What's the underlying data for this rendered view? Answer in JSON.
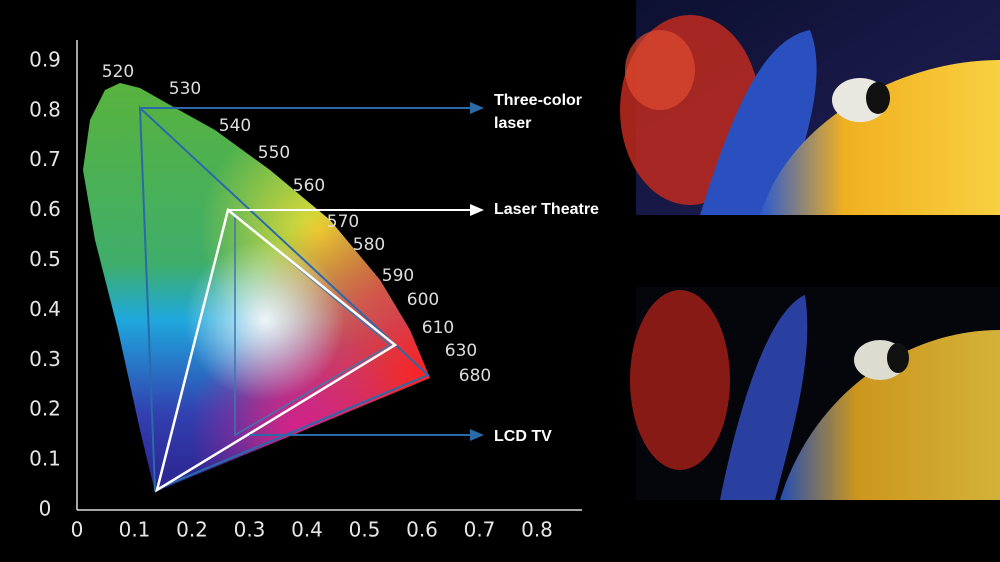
{
  "y_axis": {
    "ticks": [
      0,
      0.1,
      0.2,
      0.3,
      0.4,
      0.5,
      0.6,
      0.7,
      0.8,
      0.9
    ]
  },
  "x_axis": {
    "ticks": [
      0,
      0.1,
      0.2,
      0.3,
      0.4,
      0.5,
      0.6,
      0.7,
      0.8
    ]
  },
  "wavelengths": [
    520,
    530,
    540,
    550,
    560,
    570,
    580,
    590,
    600,
    610,
    630,
    680
  ],
  "callouts": {
    "three_color_laser": [
      "Three-color",
      "laser"
    ],
    "laser_theatre": "Laser Theatre",
    "lcd_tv": "LCD TV"
  }
}
